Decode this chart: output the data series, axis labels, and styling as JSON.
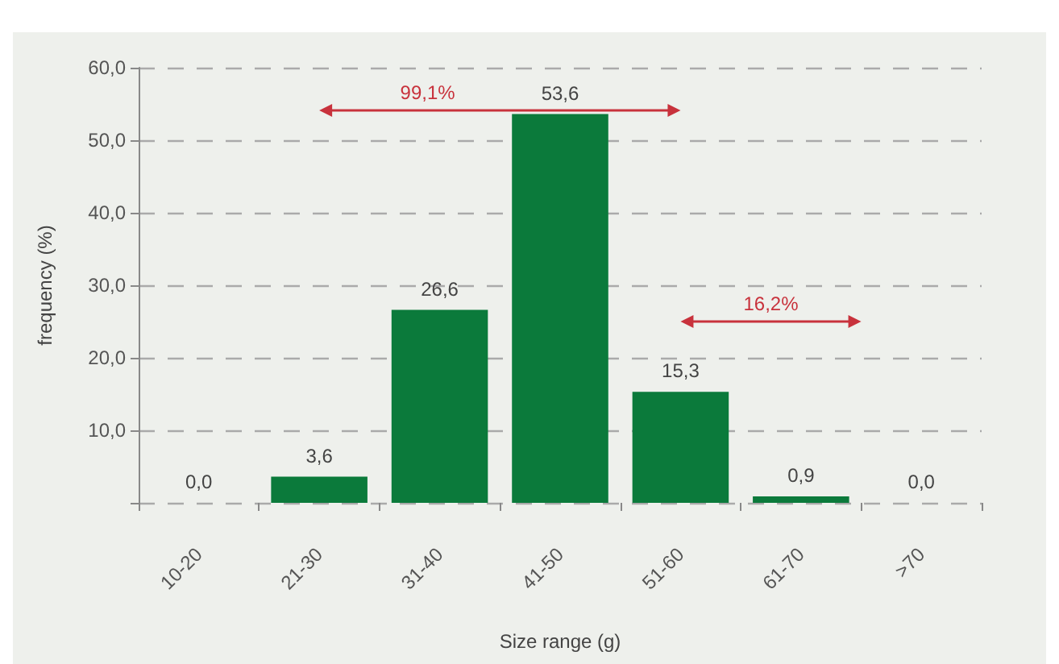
{
  "chart_data": {
    "type": "bar",
    "categories": [
      "10-20",
      "21-30",
      "31-40",
      "41-50",
      "51-60",
      "61-70",
      ">70"
    ],
    "values": [
      0.0,
      3.6,
      26.6,
      53.6,
      15.3,
      0.9,
      0.0
    ],
    "value_labels": [
      "0,0",
      "3,6",
      "26,6",
      "53,6",
      "15,3",
      "0,9",
      "0,0"
    ],
    "color": "#0b7a3b",
    "xlabel": "Size range (g)",
    "ylabel": "frequency (%)",
    "ylim": [
      0,
      60
    ],
    "yticks": [
      {
        "value": 0,
        "label": null
      },
      {
        "value": 10,
        "label": "10,0"
      },
      {
        "value": 20,
        "label": "20,0"
      },
      {
        "value": 30,
        "label": "30,0"
      },
      {
        "value": 40,
        "label": "40,0"
      },
      {
        "value": 50,
        "label": "50,0"
      },
      {
        "value": 60,
        "label": "60,0"
      }
    ],
    "annotations": [
      "99,1%",
      "16,2%"
    ],
    "grid": "y"
  }
}
